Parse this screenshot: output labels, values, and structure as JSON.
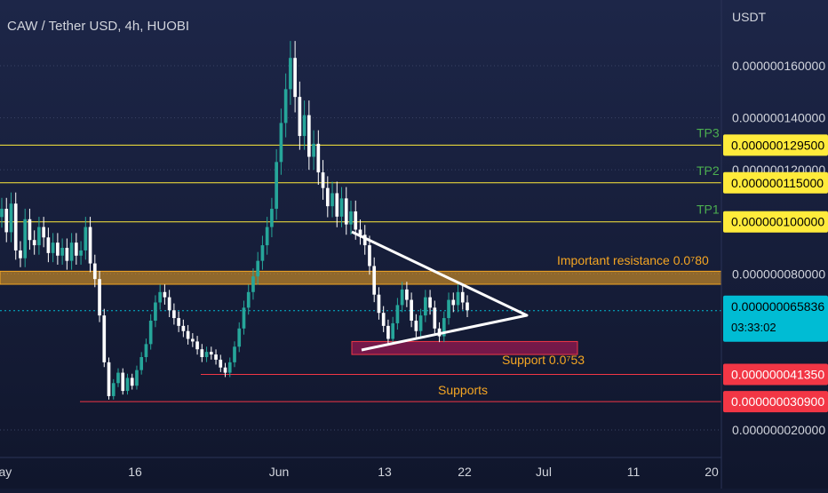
{
  "chart_data": {
    "type": "candlestick",
    "title": "CAW / Tether USD, 4h, HUOBI",
    "currency_label": "USDT",
    "y_axis_ticks": [
      {
        "value": 2e-08,
        "label": "0.000000020000"
      },
      {
        "value": 8e-08,
        "label": "0.000000080000"
      },
      {
        "value": 1.2e-07,
        "label": "0.000000120000"
      },
      {
        "value": 1.4e-07,
        "label": "0.000000140000"
      },
      {
        "value": 1.6e-07,
        "label": "0.000000160000"
      }
    ],
    "x_axis_ticks": [
      "May",
      "16",
      "Jun",
      "13",
      "22",
      "Jul",
      "11",
      "20"
    ],
    "price_tags": [
      {
        "value": 1.295e-07,
        "label": "0.000000129500",
        "bg": "#ffeb3b",
        "fg": "#000000"
      },
      {
        "value": 1.15e-07,
        "label": "0.000000115000",
        "bg": "#ffeb3b",
        "fg": "#000000"
      },
      {
        "value": 1e-07,
        "label": "0.000000100000",
        "bg": "#ffeb3b",
        "fg": "#000000"
      },
      {
        "value": 6.5836e-08,
        "label": "0.000000065836",
        "sub": "03:33:02",
        "bg": "#00bcd4",
        "fg": "#000000"
      },
      {
        "value": 4.135e-08,
        "label": "0.000000041350",
        "bg": "#f23645",
        "fg": "#ffffff"
      },
      {
        "value": 3.09e-08,
        "label": "0.000000030900",
        "bg": "#f23645",
        "fg": "#ffffff"
      }
    ],
    "target_lines": [
      {
        "name": "TP3",
        "value": 1.295e-07
      },
      {
        "name": "TP2",
        "value": 1.15e-07
      },
      {
        "name": "TP1",
        "value": 1e-07
      }
    ],
    "annotations": {
      "resistance_label": "Important resistance 0.0⁷80",
      "resistance_zone": [
        7.6e-08,
        8.1e-08
      ],
      "support_label": "Support 0.0⁷53",
      "support_zone": [
        4.9e-08,
        5.4e-08
      ],
      "supports_label": "Supports",
      "support_lines": [
        4.135e-08,
        3.09e-08
      ]
    },
    "close_series": [
      1.05e-07,
      9.6e-08,
      1.07e-07,
      8.9e-08,
      8.6e-08,
      1.01e-07,
      9.3e-08,
      9.1e-08,
      9.8e-08,
      9.4e-08,
      8.8e-08,
      9.2e-08,
      8.7e-08,
      9e-08,
      8.5e-08,
      9.2e-08,
      8.7e-08,
      8.9e-08,
      9.8e-08,
      8.4e-08,
      7.8e-08,
      6.4e-08,
      4.6e-08,
      3.3e-08,
      3.8e-08,
      4.2e-08,
      3.5e-08,
      4e-08,
      3.7e-08,
      4.3e-08,
      4.8e-08,
      5.3e-08,
      6.2e-08,
      6.9e-08,
      7.3e-08,
      7.1e-08,
      6.6e-08,
      6.3e-08,
      6e-08,
      5.8e-08,
      5.5e-08,
      5.4e-08,
      5.1e-08,
      4.8e-08,
      5e-08,
      4.9e-08,
      4.7e-08,
      4.4e-08,
      4.2e-08,
      4.6e-08,
      5.2e-08,
      5.9e-08,
      6.7e-08,
      7.3e-08,
      7.9e-08,
      8.5e-08,
      9.1e-08,
      9.8e-08,
      1.05e-07,
      1.23e-07,
      1.38e-07,
      1.51e-07,
      1.63e-07,
      1.48e-07,
      1.33e-07,
      1.41e-07,
      1.25e-07,
      1.3e-07,
      1.19e-07,
      1.13e-07,
      1.06e-07,
      1.11e-07,
      1.02e-07,
      1.09e-07,
      9.9e-08,
      1.04e-07,
      9.7e-08,
      9.5e-08,
      9.1e-08,
      8.3e-08,
      7.2e-08,
      6.5e-08,
      6e-08,
      5.5e-08,
      6.1e-08,
      6.8e-08,
      7.4e-08,
      7e-08,
      6.2e-08,
      5.8e-08,
      6.4e-08,
      7.1e-08,
      6.7e-08,
      5.9e-08,
      5.6e-08,
      6.3e-08,
      7e-08,
      6.8e-08,
      7.3e-08,
      6.9e-08,
      6.6e-08
    ]
  }
}
